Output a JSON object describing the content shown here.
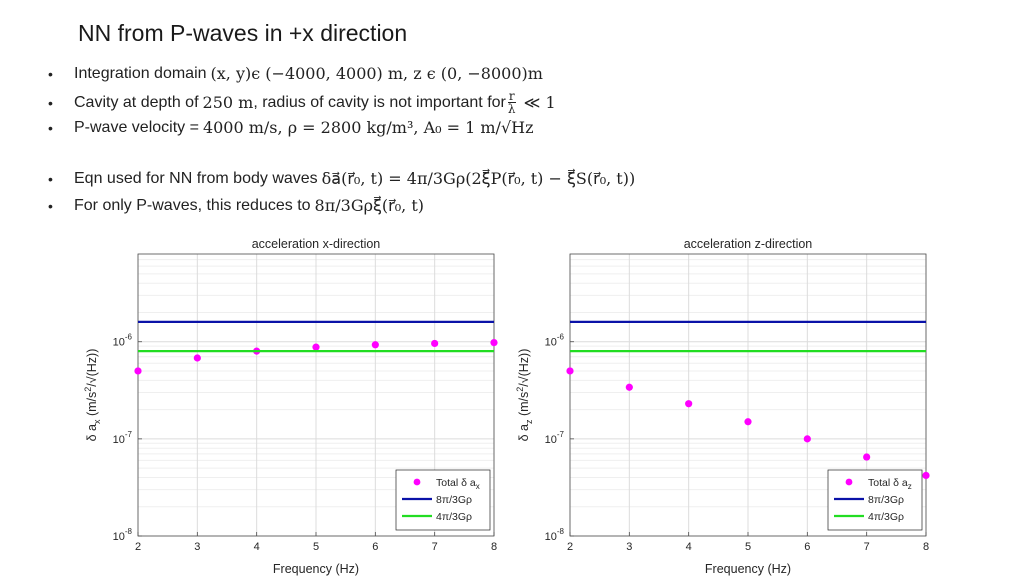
{
  "slide": {
    "title": "NN from P-waves in +x direction",
    "bullet_symbol": "•",
    "bullets": [
      {
        "text": "Integration domain ",
        "math": "(x, y)ϵ (−4000, 4000) m, z ϵ (0, −8000)m"
      },
      {
        "text": "Cavity at depth of ",
        "math": "250 m",
        "text2": ", radius of cavity is not important for ",
        "frac_num": "r",
        "frac_den": "λ",
        "math2": "≪ 1"
      },
      {
        "text": "P-wave velocity = ",
        "math": "4000 m/s, ρ = 2800 kg/m³, A₀ = 1 m/√Hz"
      },
      {
        "text": "Eqn used for NN from body waves ",
        "math": "δa⃗(r⃗₀, t) = 4π/3Gρ(2ξ⃗P(r⃗₀, t) − ξ⃗S(r⃗₀, t))"
      },
      {
        "text": "For only P-waves, this reduces to ",
        "math": "8π/3Gρξ⃗(r⃗₀, t)"
      }
    ]
  },
  "chart_data": [
    {
      "type": "scatter",
      "title": "acceleration x-direction",
      "xlabel": "Frequency (Hz)",
      "ylabel": "δ a_x (m/s²/√(Hz))",
      "ylabel_parts": {
        "pre": "δ a",
        "sub": "x",
        "mid": " (m/s",
        "sup": "2",
        "post": "/√(Hz))"
      },
      "x_ticks": [
        "2",
        "3",
        "4",
        "5",
        "6",
        "7",
        "8"
      ],
      "y_ticks": [
        {
          "v": 1e-08,
          "base": "10",
          "exp": "-8"
        },
        {
          "v": 1e-07,
          "base": "10",
          "exp": "-7"
        },
        {
          "v": 1e-06,
          "base": "10",
          "exp": "-6"
        }
      ],
      "xlim": [
        2,
        8
      ],
      "ylim": [
        1e-08,
        8e-06
      ],
      "yscale": "log",
      "grid": true,
      "legend_position": "bottom-right",
      "series": [
        {
          "name": "Total δ a",
          "name_sub": "x",
          "kind": "markers",
          "color": "#ff00ff",
          "x": [
            2,
            3,
            4,
            5,
            6,
            7,
            8
          ],
          "y": [
            5e-07,
            6.8e-07,
            8e-07,
            8.8e-07,
            9.3e-07,
            9.6e-07,
            9.8e-07
          ]
        },
        {
          "name": "8π/3Gρ",
          "kind": "line",
          "color": "#0a12a8",
          "x": [
            2,
            8
          ],
          "y": [
            1.6e-06,
            1.6e-06
          ]
        },
        {
          "name": "4π/3Gρ",
          "kind": "line",
          "color": "#22dd22",
          "x": [
            2,
            8
          ],
          "y": [
            8e-07,
            8e-07
          ]
        }
      ]
    },
    {
      "type": "scatter",
      "title": "acceleration z-direction",
      "xlabel": "Frequency (Hz)",
      "ylabel": "δ a_z (m/s²/√(Hz))",
      "ylabel_parts": {
        "pre": "δ a",
        "sub": "z",
        "mid": " (m/s",
        "sup": "2",
        "post": "/√(Hz))"
      },
      "x_ticks": [
        "2",
        "3",
        "4",
        "5",
        "6",
        "7",
        "8"
      ],
      "y_ticks": [
        {
          "v": 1e-08,
          "base": "10",
          "exp": "-8"
        },
        {
          "v": 1e-07,
          "base": "10",
          "exp": "-7"
        },
        {
          "v": 1e-06,
          "base": "10",
          "exp": "-6"
        }
      ],
      "xlim": [
        2,
        8
      ],
      "ylim": [
        1e-08,
        8e-06
      ],
      "yscale": "log",
      "grid": true,
      "legend_position": "bottom-right",
      "series": [
        {
          "name": "Total δ a",
          "name_sub": "z",
          "kind": "markers",
          "color": "#ff00ff",
          "x": [
            2,
            3,
            4,
            5,
            6,
            7,
            8
          ],
          "y": [
            5e-07,
            3.4e-07,
            2.3e-07,
            1.5e-07,
            1e-07,
            6.5e-08,
            4.2e-08
          ]
        },
        {
          "name": "8π/3Gρ",
          "kind": "line",
          "color": "#0a12a8",
          "x": [
            2,
            8
          ],
          "y": [
            1.6e-06,
            1.6e-06
          ]
        },
        {
          "name": "4π/3Gρ",
          "kind": "line",
          "color": "#22dd22",
          "x": [
            2,
            8
          ],
          "y": [
            8e-07,
            8e-07
          ]
        }
      ]
    }
  ]
}
